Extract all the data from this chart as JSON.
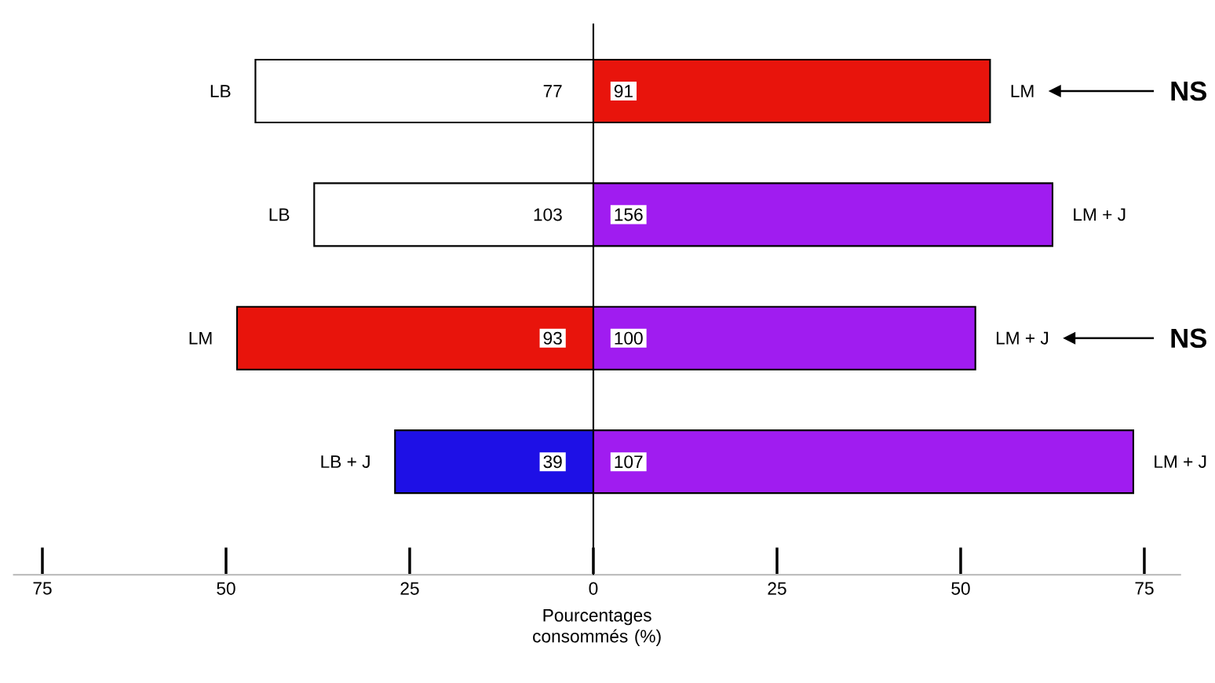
{
  "chart_data": {
    "type": "bar",
    "orientation": "horizontal",
    "stacked": true,
    "xlabel": "Pourcentages consommés (%)",
    "categories": [
      "LB",
      "LB",
      "LM",
      "LB + J"
    ],
    "y2_categories": [
      "LM",
      "LM + J",
      "LM + J",
      "LM + J"
    ],
    "series": [
      {
        "values": [
          -46,
          -38,
          -48.5,
          -27
        ],
        "colors": [
          "#ffffff",
          "#ffffff",
          "#e8140c",
          "#1e10e6"
        ]
      },
      {
        "values": [
          54,
          62.5,
          52,
          73.5
        ],
        "colors": [
          "#e8140c",
          "#a01cf0",
          "#a01cf0",
          "#a01cf0"
        ]
      }
    ],
    "xlim": [
      -79,
      80
    ],
    "xticks": [
      {
        "value": -75,
        "label": "75"
      },
      {
        "value": -50,
        "label": "50"
      },
      {
        "value": -25,
        "label": "25"
      },
      0,
      25,
      50,
      75
    ],
    "annotations": [
      "77",
      "103",
      "93",
      "39",
      "91",
      "156",
      "100",
      "107",
      "NS",
      "NS"
    ]
  }
}
